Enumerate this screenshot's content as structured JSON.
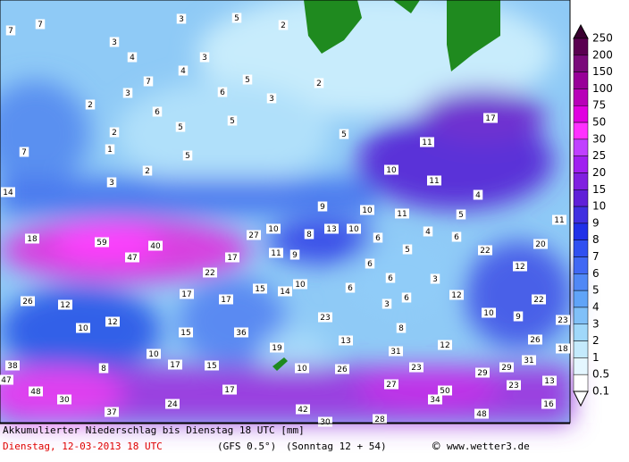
{
  "map": {
    "labels": [
      "7",
      "7",
      "3",
      "5",
      "2",
      "3",
      "4",
      "3",
      "4",
      "7",
      "5",
      "2",
      "3",
      "6",
      "3",
      "2",
      "6",
      "5",
      "5",
      "2",
      "1",
      "7",
      "5",
      "2",
      "3",
      "5",
      "17",
      "11",
      "10",
      "11",
      "4",
      "14",
      "9",
      "10",
      "11",
      "5",
      "11",
      "18",
      "59",
      "40",
      "10",
      "27",
      "8",
      "13",
      "10",
      "6",
      "4",
      "6",
      "22",
      "20",
      "47",
      "17",
      "11",
      "9",
      "5",
      "6",
      "12",
      "22",
      "6",
      "3",
      "17",
      "17",
      "15",
      "14",
      "10",
      "6",
      "26",
      "12",
      "6",
      "3",
      "12",
      "22",
      "10",
      "9",
      "23",
      "8",
      "23",
      "10",
      "12",
      "15",
      "36",
      "13",
      "12",
      "26",
      "18",
      "19",
      "31",
      "31",
      "38",
      "8",
      "10",
      "17",
      "15",
      "10",
      "26",
      "23",
      "29",
      "29",
      "47",
      "17",
      "27",
      "50",
      "23",
      "13",
      "48",
      "30",
      "34",
      "16",
      "37",
      "24",
      "42",
      "48",
      "30",
      "28"
    ]
  },
  "legend": {
    "levels": [
      "250",
      "200",
      "150",
      "100",
      "75",
      "50",
      "30",
      "25",
      "20",
      "15",
      "10",
      "9",
      "8",
      "7",
      "6",
      "5",
      "4",
      "3",
      "2",
      "1",
      "0.5",
      "0.1"
    ]
  },
  "footer": {
    "caption": "Akkumulierter Niederschlag bis Dienstag 18 UTC [mm]",
    "date": "Dienstag, 12-03-2013  18 UTC",
    "model": "(GFS 0.5°)",
    "run": "(Sonntag 12 + 54)",
    "copyright": "©",
    "site": "www.wetter3.de"
  }
}
